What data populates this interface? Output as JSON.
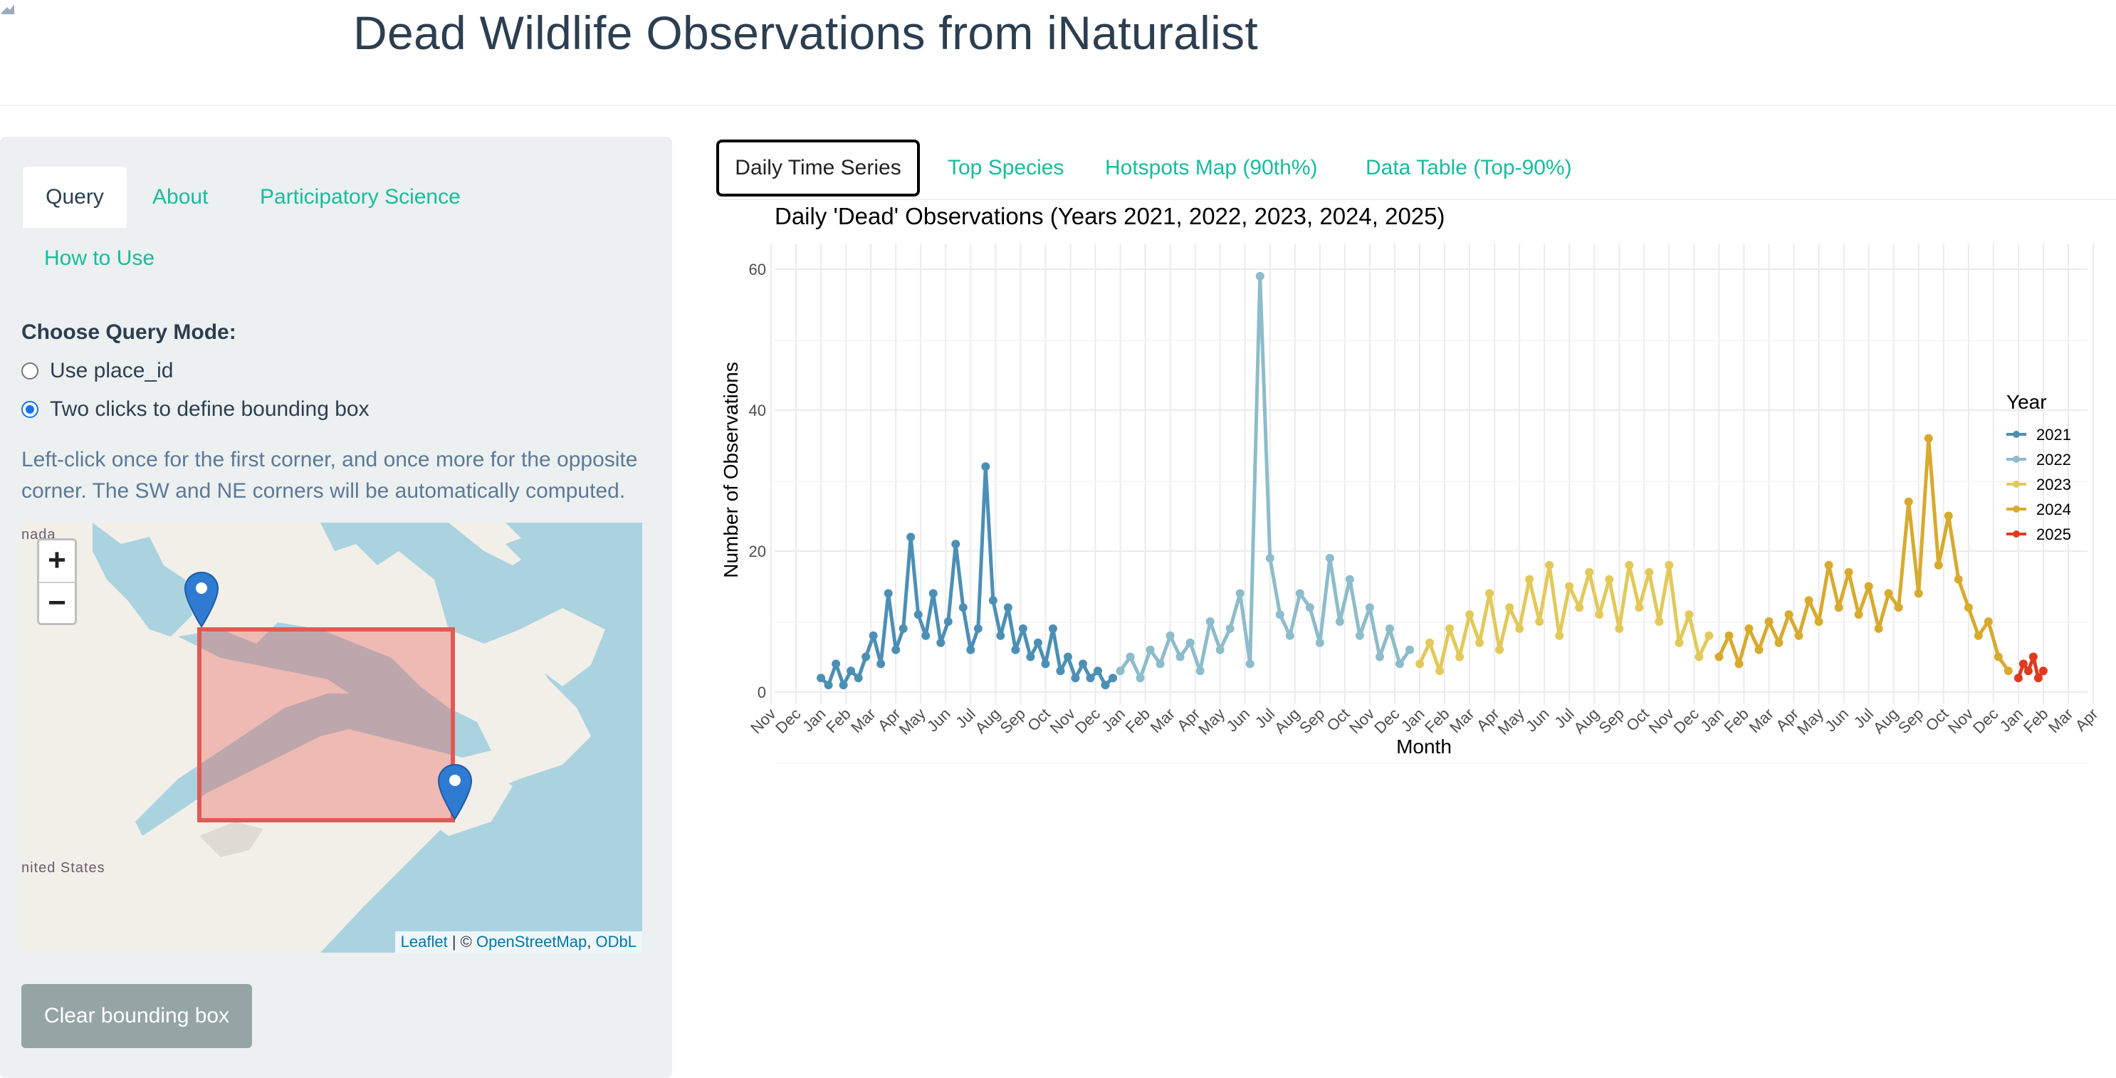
{
  "header": {
    "title": "Dead Wildlife Observations from iNaturalist"
  },
  "sidebar": {
    "tabs": [
      {
        "label": "Query",
        "active": true
      },
      {
        "label": "About",
        "active": false
      },
      {
        "label": "Participatory Science",
        "active": false
      },
      {
        "label": "How to Use",
        "active": false
      }
    ],
    "query_mode_label": "Choose Query Mode:",
    "options": [
      {
        "label": "Use place_id",
        "checked": false
      },
      {
        "label": "Two clicks to define bounding box",
        "checked": true
      }
    ],
    "help_text": "Left-click once for the first corner, and once more for the opposite corner. The SW and NE corners will be automatically computed.",
    "map": {
      "zoom_in": "+",
      "zoom_out": "−",
      "labels": {
        "canada": "nada",
        "us": "nited States"
      },
      "attribution": {
        "leaflet": "Leaflet",
        "sep": " | © ",
        "osm": "OpenStreetMap",
        "comma": ", ",
        "odbl": "ODbL"
      }
    },
    "clear_button": "Clear bounding box"
  },
  "main": {
    "tabs": [
      {
        "label": "Daily Time Series",
        "active": true
      },
      {
        "label": "Top Species",
        "active": false
      },
      {
        "label": "Hotspots Map (90th%)",
        "active": false
      },
      {
        "label": "Data Table (Top-90%)",
        "active": false
      }
    ]
  },
  "chart_data": {
    "type": "line",
    "title": "Daily 'Dead' Observations (Years 2021, 2022, 2023, 2024, 2025)",
    "xlabel": "Month",
    "ylabel": "Number of Observations",
    "ylim": [
      0,
      60
    ],
    "yticks": [
      0,
      20,
      40,
      60
    ],
    "xticks": [
      "Nov",
      "Dec",
      "Jan",
      "Feb",
      "Mar",
      "Apr",
      "May",
      "Jun",
      "Jul",
      "Aug",
      "Sep",
      "Oct",
      "Nov",
      "Dec",
      "Jan",
      "Feb",
      "Mar",
      "Apr",
      "May",
      "Jun",
      "Jul",
      "Aug",
      "Sep",
      "Oct",
      "Nov",
      "Dec",
      "Jan",
      "Feb",
      "Mar",
      "Apr",
      "May",
      "Jun",
      "Jul",
      "Aug",
      "Sep",
      "Oct",
      "Nov",
      "Dec",
      "Jan",
      "Feb",
      "Mar",
      "Apr",
      "May",
      "Jun",
      "Jul",
      "Aug",
      "Sep",
      "Oct",
      "Nov",
      "Dec",
      "Jan",
      "Feb",
      "Mar",
      "Apr"
    ],
    "legend_title": "Year",
    "legend_position": "right",
    "grid": true,
    "series": [
      {
        "name": "2021",
        "color": "#4c8fb5",
        "x": [
          2.0,
          2.3,
          2.6,
          2.9,
          3.2,
          3.5,
          3.8,
          4.1,
          4.4,
          4.7,
          5.0,
          5.3,
          5.6,
          5.9,
          6.2,
          6.5,
          6.8,
          7.1,
          7.4,
          7.7,
          8.0,
          8.3,
          8.6,
          8.9,
          9.2,
          9.5,
          9.8,
          10.1,
          10.4,
          10.7,
          11.0,
          11.3,
          11.6,
          11.9,
          12.2,
          12.5,
          12.8,
          13.1,
          13.4,
          13.7
        ],
        "y": [
          2,
          1,
          4,
          1,
          3,
          2,
          5,
          8,
          4,
          14,
          6,
          9,
          22,
          11,
          8,
          14,
          7,
          10,
          21,
          12,
          6,
          9,
          32,
          13,
          8,
          12,
          6,
          9,
          5,
          7,
          4,
          9,
          3,
          5,
          2,
          4,
          2,
          3,
          1,
          2
        ]
      },
      {
        "name": "2022",
        "color": "#8dbccb",
        "x": [
          14.0,
          14.4,
          14.8,
          15.2,
          15.6,
          16.0,
          16.4,
          16.8,
          17.2,
          17.6,
          18.0,
          18.4,
          18.8,
          19.2,
          19.6,
          20.0,
          20.4,
          20.8,
          21.2,
          21.6,
          22.0,
          22.4,
          22.8,
          23.2,
          23.6,
          24.0,
          24.4,
          24.8,
          25.2,
          25.6
        ],
        "y": [
          3,
          5,
          2,
          6,
          4,
          8,
          5,
          7,
          3,
          10,
          6,
          9,
          14,
          4,
          59,
          19,
          11,
          8,
          14,
          12,
          7,
          19,
          10,
          16,
          8,
          12,
          5,
          9,
          4,
          6
        ]
      },
      {
        "name": "2023",
        "color": "#e3c95a",
        "x": [
          26.0,
          26.4,
          26.8,
          27.2,
          27.6,
          28.0,
          28.4,
          28.8,
          29.2,
          29.6,
          30.0,
          30.4,
          30.8,
          31.2,
          31.6,
          32.0,
          32.4,
          32.8,
          33.2,
          33.6,
          34.0,
          34.4,
          34.8,
          35.2,
          35.6,
          36.0,
          36.4,
          36.8,
          37.2,
          37.6
        ],
        "y": [
          4,
          7,
          3,
          9,
          5,
          11,
          7,
          14,
          6,
          12,
          9,
          16,
          10,
          18,
          8,
          15,
          12,
          17,
          11,
          16,
          9,
          18,
          12,
          17,
          10,
          18,
          7,
          11,
          5,
          8
        ]
      },
      {
        "name": "2024",
        "color": "#d8aa2e",
        "x": [
          38.0,
          38.4,
          38.8,
          39.2,
          39.6,
          40.0,
          40.4,
          40.8,
          41.2,
          41.6,
          42.0,
          42.4,
          42.8,
          43.2,
          43.6,
          44.0,
          44.4,
          44.8,
          45.2,
          45.6,
          46.0,
          46.4,
          46.8,
          47.2,
          47.6,
          48.0,
          48.4,
          48.8,
          49.2,
          49.6
        ],
        "y": [
          5,
          8,
          4,
          9,
          6,
          10,
          7,
          11,
          8,
          13,
          10,
          18,
          12,
          17,
          11,
          15,
          9,
          14,
          12,
          27,
          14,
          36,
          18,
          25,
          16,
          12,
          8,
          10,
          5,
          3
        ]
      },
      {
        "name": "2025",
        "color": "#e03a1e",
        "x": [
          50.0,
          50.2,
          50.4,
          50.6,
          50.8,
          51.0
        ],
        "y": [
          2,
          4,
          3,
          5,
          2,
          3
        ]
      }
    ]
  }
}
